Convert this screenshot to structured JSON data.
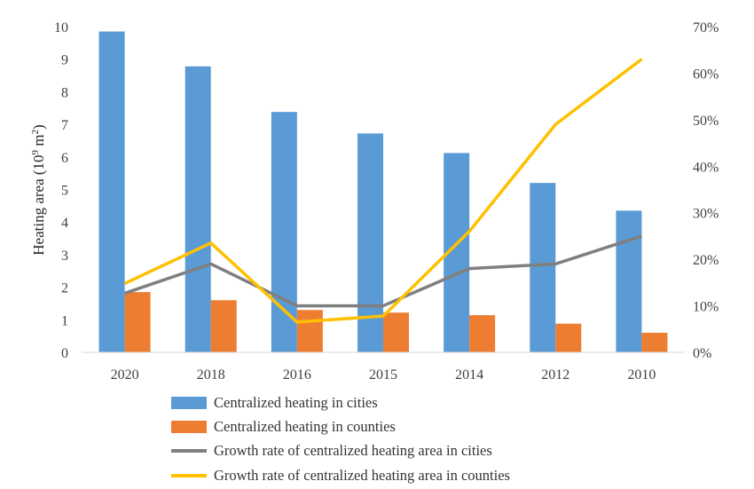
{
  "chart_data": {
    "type": "bar",
    "title": "",
    "categories": [
      "2020",
      "2018",
      "2016",
      "2015",
      "2014",
      "2012",
      "2010"
    ],
    "ylabel_main": "Heating area (10",
    "ylabel_sup": "9",
    "ylabel_mid": " m",
    "ylabel_sup2": "2",
    "ylabel_end": ")",
    "ylim_left": [
      0,
      10
    ],
    "ylim_right": [
      0,
      70
    ],
    "left_ticks": [
      "0",
      "1",
      "2",
      "3",
      "4",
      "5",
      "6",
      "7",
      "8",
      "9",
      "10"
    ],
    "right_ticks": [
      "0%",
      "10%",
      "20%",
      "30%",
      "40%",
      "50%",
      "60%",
      "70%"
    ],
    "grid": false,
    "legend_position": "bottom",
    "series": [
      {
        "name": "Centralized heating in cities",
        "kind": "bar",
        "axis": "left",
        "color": "#5B9BD5",
        "values": [
          9.85,
          8.78,
          7.38,
          6.72,
          6.12,
          5.2,
          4.35
        ]
      },
      {
        "name": "Centralized heating in counties",
        "kind": "bar",
        "axis": "left",
        "color": "#ED7D31",
        "values": [
          1.85,
          1.6,
          1.3,
          1.22,
          1.14,
          0.88,
          0.6
        ]
      },
      {
        "name": "Growth rate of centralized heating area in cities",
        "kind": "line",
        "axis": "right",
        "color": "#7F7F7F",
        "values": [
          12.7,
          19.0,
          10.0,
          10.0,
          18.0,
          19.0,
          25.0
        ]
      },
      {
        "name": "Growth rate of centralized heating area in counties",
        "kind": "line",
        "axis": "right",
        "color": "#FFC000",
        "values": [
          14.8,
          23.5,
          6.5,
          7.8,
          26.0,
          49.0,
          63.0
        ]
      }
    ]
  }
}
